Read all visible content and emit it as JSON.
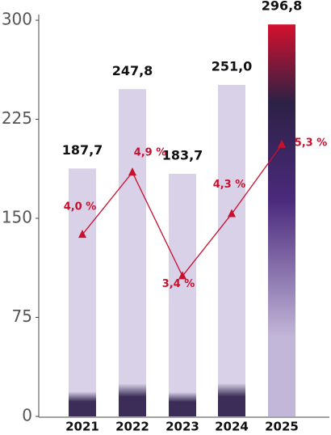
{
  "chart_data": {
    "type": "bar",
    "categories": [
      "2021",
      "2022",
      "2023",
      "2024",
      "2025"
    ],
    "series": [
      {
        "type": "bar",
        "color": "#d8d1e8",
        "base_color": "#3b2d57",
        "highlight_colors": [
          "#d3102d",
          "#2c2145",
          "#4b2a7d",
          "#c3b7d9"
        ],
        "values": [
          187.7,
          247.8,
          183.7,
          251.0,
          296.8
        ],
        "value_labels": [
          "187,7",
          "247,8",
          "183,7",
          "251,0",
          "296,8"
        ]
      },
      {
        "type": "line",
        "axis": "y2",
        "color": "#c8102e",
        "values": [
          4.0,
          4.9,
          3.4,
          4.3,
          5.3
        ],
        "value_labels": [
          "4,0 %",
          "4,9 %",
          "3,4 %",
          "4,3 %",
          "5,3 %"
        ]
      }
    ],
    "ylim": [
      0,
      300
    ],
    "yticks": [
      0,
      75,
      150,
      225,
      300
    ],
    "y2lim": [
      1.37,
      7.1
    ]
  }
}
